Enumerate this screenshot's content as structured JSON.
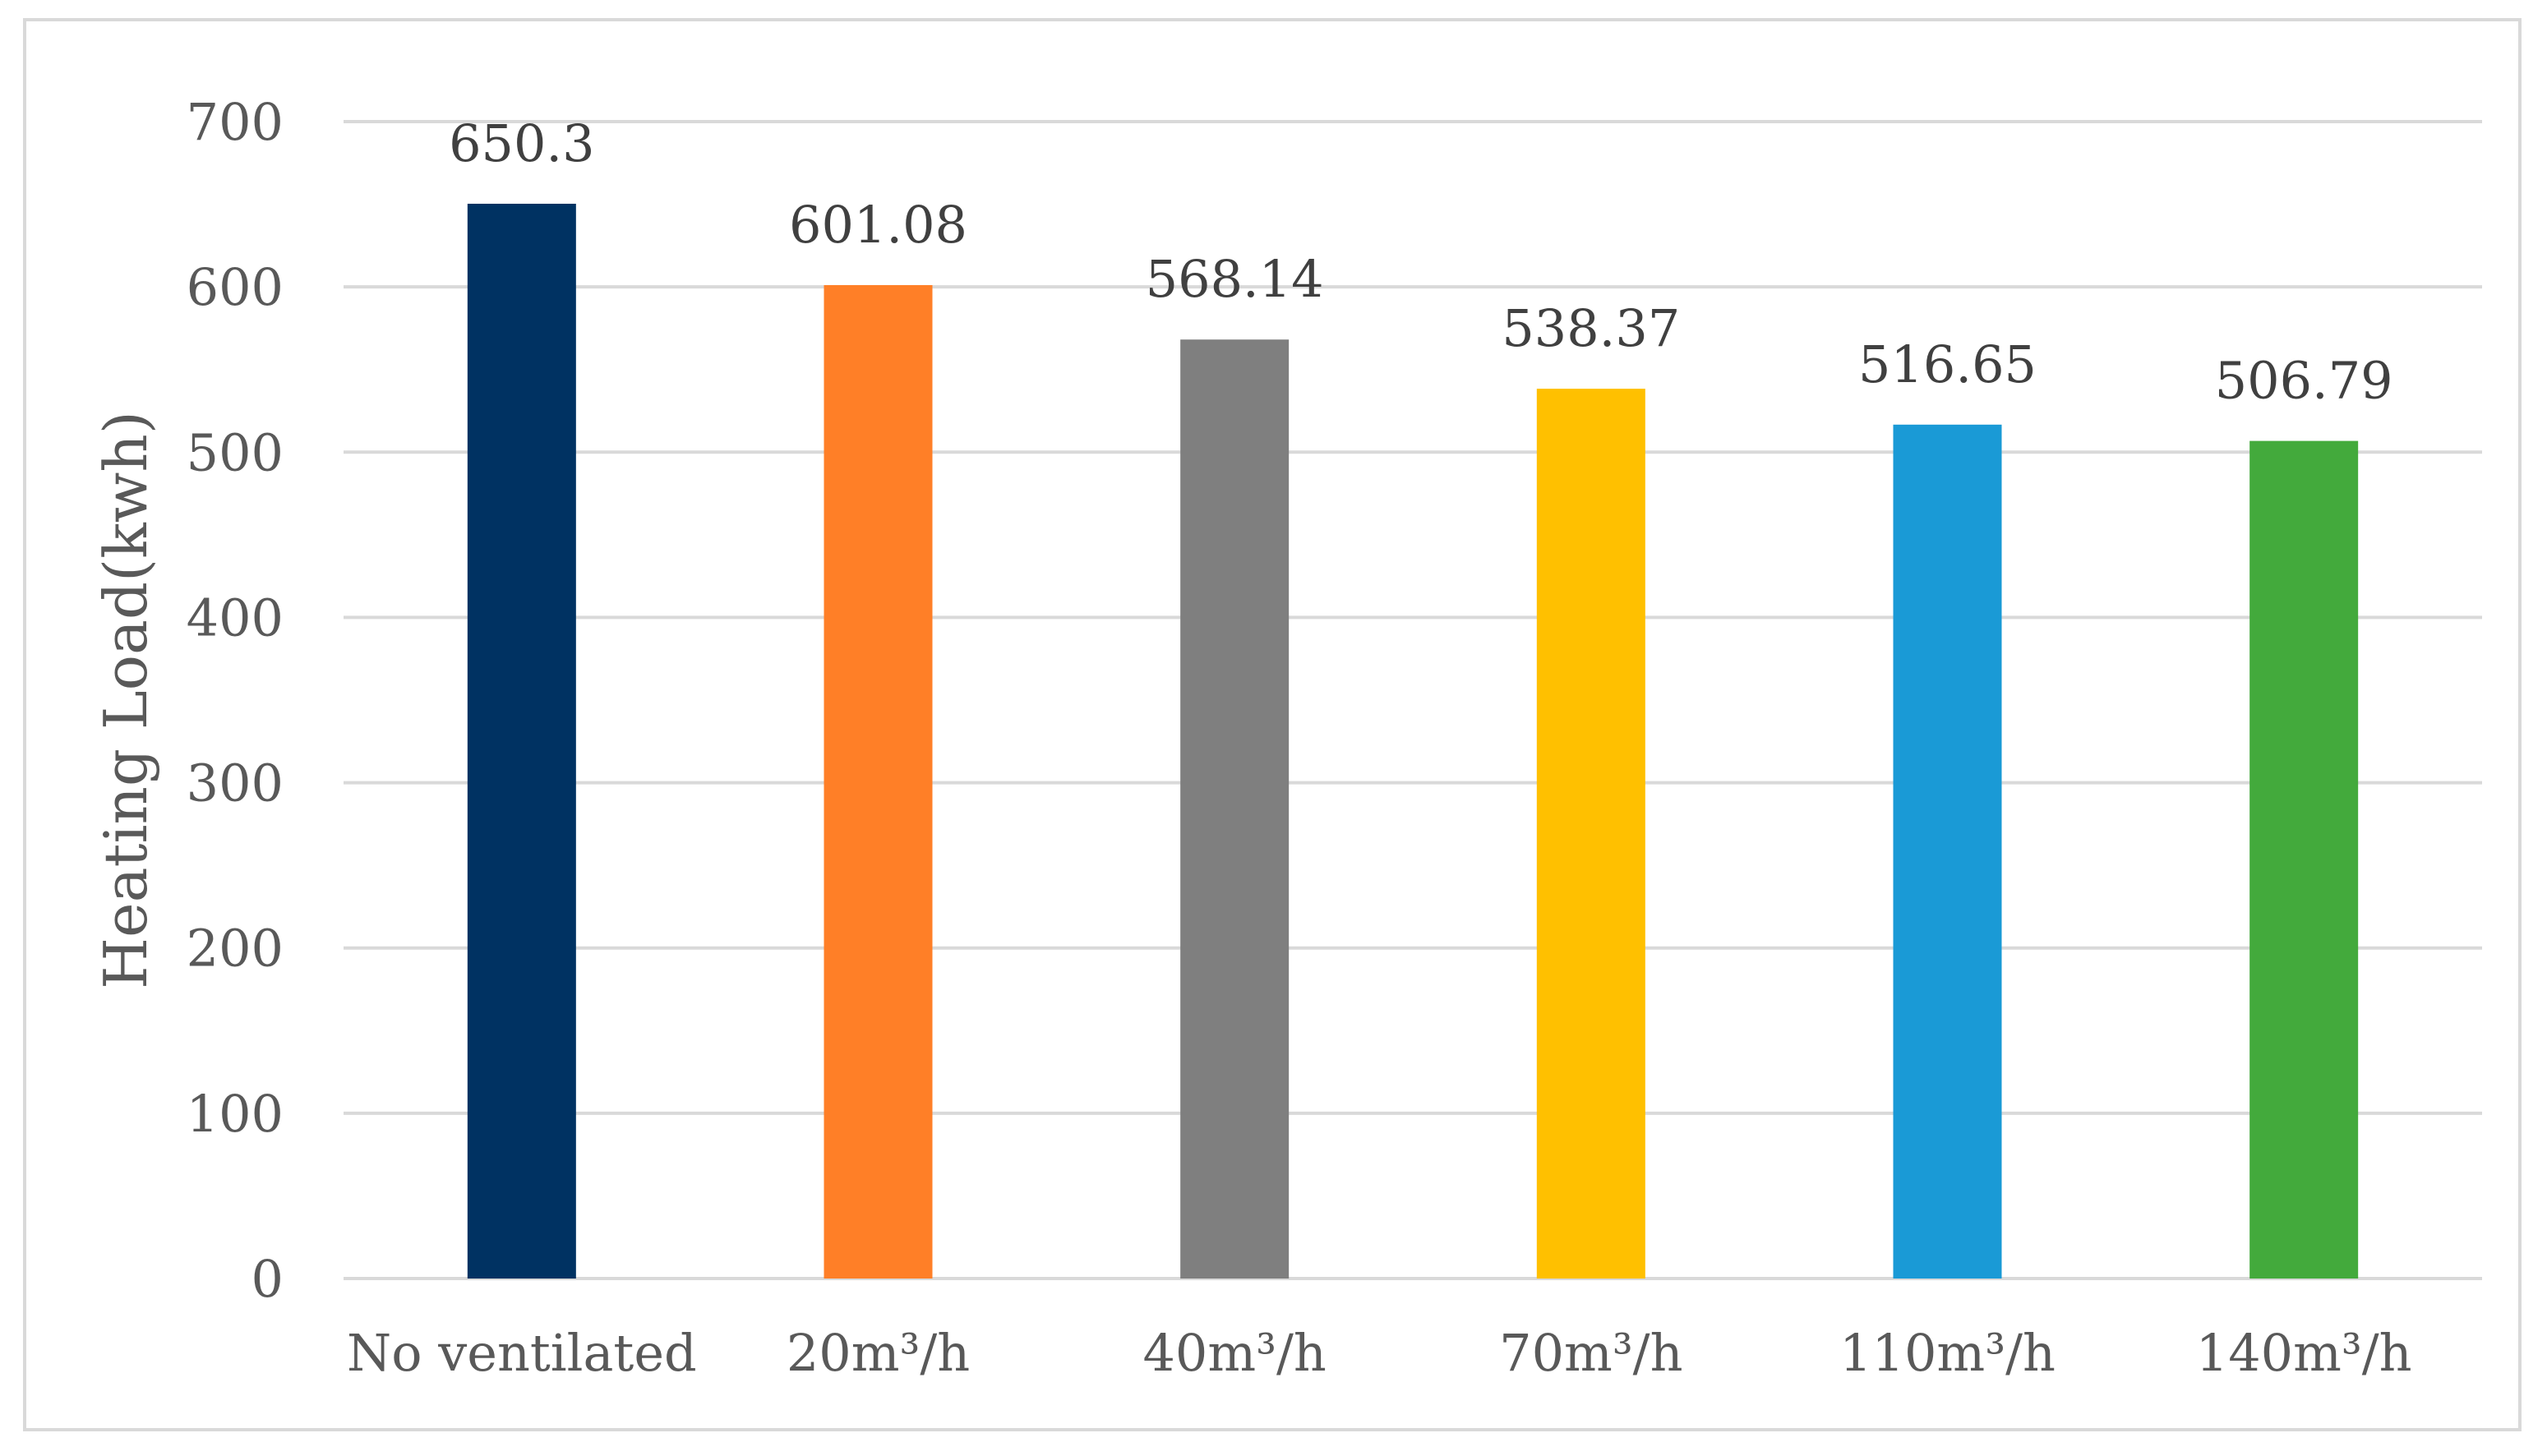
{
  "chart_data": {
    "type": "bar",
    "title": "",
    "xlabel": "",
    "ylabel": "Heating Load(kwh)",
    "ylim": [
      0,
      700
    ],
    "yticks": [
      0,
      100,
      200,
      300,
      400,
      500,
      600,
      700
    ],
    "grid": true,
    "legend": "none",
    "categories": [
      "No ventilated",
      "20m³/h",
      "40m³/h",
      "70m³/h",
      "110m³/h",
      "140m³/h"
    ],
    "values": [
      650.3,
      601.08,
      568.14,
      538.37,
      516.65,
      506.79
    ],
    "value_labels": [
      "650.3",
      "601.08",
      "568.14",
      "538.37",
      "516.65",
      "506.79"
    ],
    "colors": [
      "#003262",
      "#FF7F27",
      "#7F7F7F",
      "#FFC000",
      "#1A9AD6",
      "#43AA3C"
    ]
  }
}
